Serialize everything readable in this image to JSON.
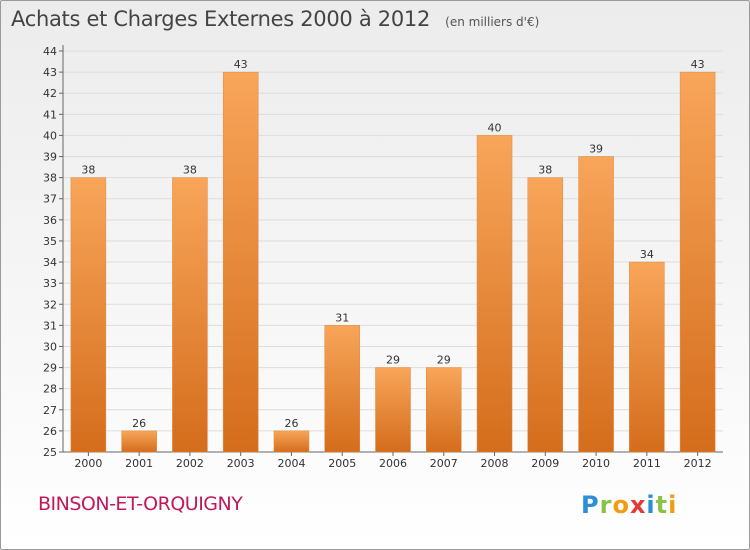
{
  "title": "Achats et Charges Externes 2000 à 2012",
  "unit": "(en milliers d'€)",
  "commune": "BINSON-ET-ORQUIGNY",
  "logo": {
    "text": "Proxiti",
    "letters": [
      {
        "ch": "P",
        "color": "#2a8fd6"
      },
      {
        "ch": "r",
        "color": "#8bc34a"
      },
      {
        "ch": "o",
        "color": "#f39c12"
      },
      {
        "ch": "x",
        "color": "#e53935"
      },
      {
        "ch": "i",
        "color": "#2a8fd6"
      },
      {
        "ch": "t",
        "color": "#8bc34a"
      },
      {
        "ch": "i",
        "color": "#f39c12"
      }
    ]
  },
  "colors": {
    "bar_light": "#f8a55a",
    "bar_dark": "#d46d1c",
    "axis": "#666666",
    "grid": "#dddddd",
    "text": "#333333"
  },
  "chart_data": {
    "type": "bar",
    "categories": [
      "2000",
      "2001",
      "2002",
      "2003",
      "2004",
      "2005",
      "2006",
      "2007",
      "2008",
      "2009",
      "2010",
      "2011",
      "2012"
    ],
    "values": [
      38,
      26,
      38,
      43,
      26,
      31,
      29,
      29,
      40,
      38,
      39,
      34,
      43
    ],
    "ylim": [
      25,
      44
    ],
    "yticks": [
      25,
      26,
      27,
      28,
      29,
      30,
      31,
      32,
      33,
      34,
      35,
      36,
      37,
      38,
      39,
      40,
      41,
      42,
      43,
      44
    ],
    "grid": true,
    "legend": "none"
  }
}
